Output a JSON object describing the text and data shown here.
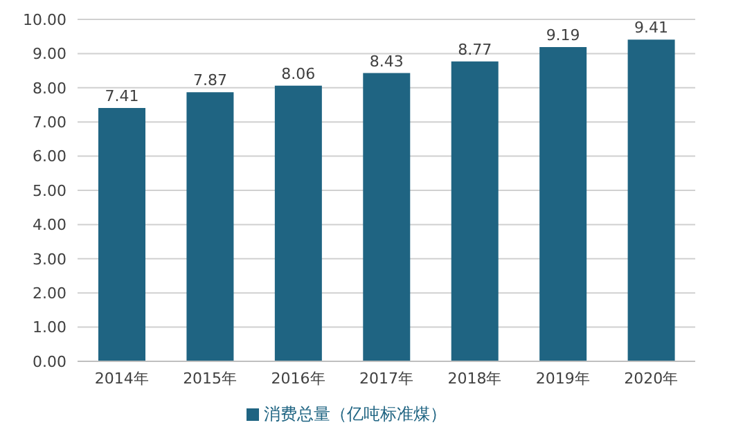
{
  "chart_data": {
    "type": "bar",
    "categories": [
      "2014年",
      "2015年",
      "2016年",
      "2017年",
      "2018年",
      "2019年",
      "2020年"
    ],
    "series": [
      {
        "name": "消费总量（亿吨标准煤）",
        "color": "#1f6482",
        "values": [
          7.41,
          7.87,
          8.06,
          8.43,
          8.77,
          9.19,
          9.41
        ]
      }
    ],
    "ylim": [
      0,
      10
    ],
    "yticks": [
      {
        "value": 0,
        "label": "0.00"
      },
      {
        "value": 1,
        "label": "1.00"
      },
      {
        "value": 2,
        "label": "2.00"
      },
      {
        "value": 3,
        "label": "3.00"
      },
      {
        "value": 4,
        "label": "4.00"
      },
      {
        "value": 5,
        "label": "5.00"
      },
      {
        "value": 6,
        "label": "6.00"
      },
      {
        "value": 7,
        "label": "7.00"
      },
      {
        "value": 8,
        "label": "8.00"
      },
      {
        "value": 9,
        "label": "9.00"
      },
      {
        "value": 10,
        "label": "10.00"
      }
    ],
    "grid": "y",
    "legend": "bottom",
    "data_labels": true
  }
}
